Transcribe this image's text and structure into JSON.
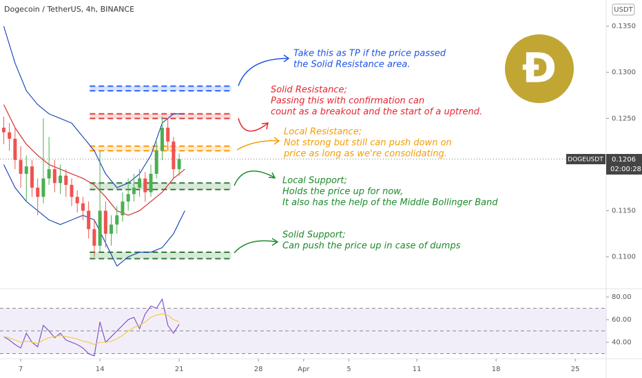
{
  "chart_data": [
    {
      "type": "candlestick",
      "title": "Dogecoin / TetherUS, 4h, BINANCE",
      "currency": "USDT",
      "symbol": "DOGEUSDT",
      "last_price": 0.1206,
      "countdown": "02:00:28",
      "logo": "Ð",
      "up_color": "#4caf50",
      "down_color": "#ef5350",
      "x": [
        5.5,
        6,
        6.5,
        7,
        7.5,
        8,
        8.5,
        9,
        9.5,
        10,
        10.5,
        11,
        11.5,
        12,
        12.5,
        13,
        13.5,
        14,
        14.5,
        15,
        15.5,
        16,
        16.5,
        17,
        17.5,
        18,
        18.5,
        19,
        19.5,
        20,
        20.5,
        21
      ],
      "open": [
        0.124,
        0.1235,
        0.1228,
        0.1205,
        0.119,
        0.1198,
        0.1175,
        0.1165,
        0.1185,
        0.1195,
        0.118,
        0.1188,
        0.1178,
        0.1165,
        0.1158,
        0.115,
        0.113,
        0.1112,
        0.115,
        0.1125,
        0.1135,
        0.1145,
        0.116,
        0.1168,
        0.1175,
        0.1185,
        0.117,
        0.119,
        0.1215,
        0.124,
        0.1225,
        0.1195
      ],
      "high": [
        0.1252,
        0.1245,
        0.124,
        0.122,
        0.121,
        0.1205,
        0.1185,
        0.125,
        0.123,
        0.1205,
        0.12,
        0.1195,
        0.1185,
        0.1172,
        0.1165,
        0.116,
        0.114,
        0.1215,
        0.116,
        0.1145,
        0.1155,
        0.117,
        0.1185,
        0.119,
        0.1195,
        0.1192,
        0.12,
        0.1225,
        0.1252,
        0.125,
        0.123,
        0.1212
      ],
      "low": [
        0.1222,
        0.1215,
        0.1195,
        0.1175,
        0.116,
        0.1165,
        0.1145,
        0.1158,
        0.1178,
        0.117,
        0.1168,
        0.1165,
        0.1155,
        0.1148,
        0.114,
        0.112,
        0.11,
        0.1105,
        0.111,
        0.1112,
        0.1125,
        0.1138,
        0.115,
        0.116,
        0.1165,
        0.116,
        0.1165,
        0.1185,
        0.1205,
        0.1215,
        0.1185,
        0.1188
      ],
      "close": [
        0.1235,
        0.1228,
        0.1205,
        0.119,
        0.1198,
        0.1175,
        0.1165,
        0.1185,
        0.1195,
        0.118,
        0.1188,
        0.1178,
        0.1165,
        0.1158,
        0.115,
        0.113,
        0.1112,
        0.115,
        0.1125,
        0.1135,
        0.1145,
        0.116,
        0.1168,
        0.1175,
        0.1185,
        0.117,
        0.119,
        0.1215,
        0.124,
        0.1225,
        0.1195,
        0.1206
      ],
      "bands": {
        "x": [
          5.5,
          6.5,
          7.5,
          8.5,
          9.5,
          10.5,
          11.5,
          12.5,
          13.5,
          14.5,
          15.5,
          16.5,
          17.5,
          18.5,
          19.5,
          20.5,
          21.5
        ],
        "lines": [
          {
            "color": "#1e4bb8",
            "values": [
              0.135,
              0.131,
              0.128,
              0.1265,
              0.1255,
              0.125,
              0.1245,
              0.123,
              0.1215,
              0.119,
              0.1175,
              0.118,
              0.119,
              0.121,
              0.1245,
              0.1255,
              0.1255
            ]
          },
          {
            "color": "#d32f2f",
            "values": [
              0.1265,
              0.124,
              0.1222,
              0.121,
              0.12,
              0.1195,
              0.119,
              0.1185,
              0.1178,
              0.1165,
              0.115,
              0.1145,
              0.115,
              0.116,
              0.117,
              0.1185,
              0.1195
            ]
          },
          {
            "color": "#1e4bb8",
            "values": [
              0.12,
              0.1175,
              0.116,
              0.115,
              0.114,
              0.1135,
              0.114,
              0.1145,
              0.114,
              0.1115,
              0.109,
              0.11,
              0.1105,
              0.1105,
              0.111,
              0.1125,
              0.115
            ]
          }
        ]
      },
      "zones": [
        {
          "color": "#2962ff",
          "top": 0.1285,
          "bottom": 0.128,
          "x_range": [
            13.1,
            25.6
          ]
        },
        {
          "color": "#e53935",
          "top": 0.1255,
          "bottom": 0.125,
          "x_range": [
            13.1,
            25.6
          ]
        },
        {
          "color": "#ff9800",
          "top": 0.122,
          "bottom": 0.1215,
          "x_range": [
            13.1,
            25.6
          ]
        },
        {
          "color": "#2e7d32",
          "top": 0.118,
          "bottom": 0.1173,
          "x_range": [
            13.1,
            25.6
          ]
        },
        {
          "color": "#2e7d32",
          "top": 0.1105,
          "bottom": 0.1098,
          "x_range": [
            13.1,
            25.6
          ]
        }
      ],
      "annotations": [
        {
          "color": "#1e53e5",
          "lines": [
            "Take this as TP if the price passed",
            "the Solid Resistance area."
          ]
        },
        {
          "color": "#e8242f",
          "lines": [
            "Solid Resistance;",
            "Passing this with confirmation can",
            "count as a breakout and the start of a uptrend."
          ]
        },
        {
          "color": "#f59c00",
          "lines": [
            "Local Resistance;",
            "Not strong but still can push down on",
            "price as long as we're consolidating."
          ]
        },
        {
          "color": "#1b8a2b",
          "lines": [
            "Local Support;",
            "Holds the price up for now,",
            "It also has the help of the Middle Bollinger Band"
          ]
        },
        {
          "color": "#1b8a2b",
          "lines": [
            "Solid Support;",
            "Can push the price up in case of dumps"
          ]
        }
      ],
      "xlim": [
        5.17,
        58.73
      ],
      "xticks": [
        7,
        14,
        21,
        28,
        {
          "value": 32,
          "label": "Apr"
        },
        {
          "value": 36,
          "label": "5"
        },
        {
          "value": 42,
          "label": "11"
        },
        {
          "value": 49,
          "label": "18"
        },
        {
          "value": 56,
          "label": "25"
        }
      ],
      "ylim": [
        0.10655,
        0.13784
      ],
      "yticks": [
        {
          "value": 0.135,
          "label": "0.1350"
        },
        {
          "value": 0.13,
          "label": "0.1300"
        },
        {
          "value": 0.125,
          "label": "0.1250"
        },
        {
          "value": 0.115,
          "label": "0.1150"
        },
        {
          "value": 0.11,
          "label": "0.1100"
        }
      ]
    },
    {
      "type": "line",
      "x": [
        5.5,
        6,
        6.5,
        7,
        7.5,
        8,
        8.5,
        9,
        9.5,
        10,
        10.5,
        11,
        11.5,
        12,
        12.5,
        13,
        13.5,
        14,
        14.5,
        15,
        15.5,
        16,
        16.5,
        17,
        17.5,
        18,
        18.5,
        19,
        19.5,
        20,
        20.5,
        21
      ],
      "series": [
        {
          "color": "#7e57c2",
          "values": [
            45,
            42,
            38,
            35,
            48,
            40,
            36,
            55,
            50,
            44,
            48,
            42,
            40,
            38,
            35,
            30,
            28,
            58,
            40,
            45,
            50,
            55,
            60,
            62,
            52,
            65,
            72,
            70,
            78,
            55,
            48,
            56
          ]
        },
        {
          "color": "#f7c948",
          "values": [
            45,
            44,
            42,
            40,
            41,
            40,
            39,
            42,
            44,
            45,
            46,
            45,
            44,
            43,
            41,
            40,
            38,
            40,
            40,
            41,
            43,
            46,
            50,
            53,
            55,
            58,
            62,
            64,
            65,
            64,
            60,
            58
          ]
        }
      ],
      "band": [
        30,
        70
      ],
      "midline": 50,
      "xlim": [
        5.17,
        58.73
      ],
      "ylim": [
        26.7,
        87.3
      ],
      "yticks": [
        {
          "value": 80,
          "label": "80.00"
        },
        {
          "value": 60,
          "label": "60.00"
        },
        {
          "value": 40,
          "label": "40.00"
        }
      ]
    }
  ]
}
